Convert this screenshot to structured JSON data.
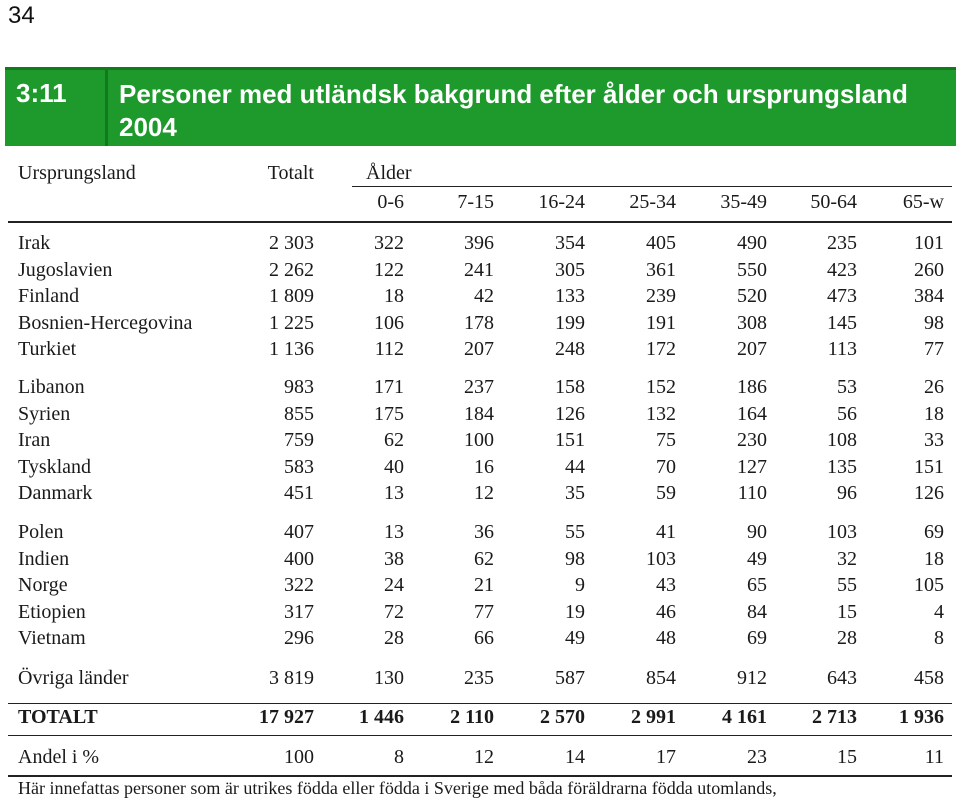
{
  "page_number": "34",
  "title": {
    "number": "3:11",
    "text": "Personer med utländsk bakgrund efter ålder och ursprungsland 2004"
  },
  "header": {
    "origin": "Ursprungsland",
    "total": "Totalt",
    "age": "Ålder",
    "age_groups": [
      "0-6",
      "7-15",
      "16-24",
      "25-34",
      "35-49",
      "50-64",
      "65-w"
    ]
  },
  "groups": [
    [
      {
        "name": "Irak",
        "values": [
          "2 303",
          "322",
          "396",
          "354",
          "405",
          "490",
          "235",
          "101"
        ]
      },
      {
        "name": "Jugoslavien",
        "values": [
          "2 262",
          "122",
          "241",
          "305",
          "361",
          "550",
          "423",
          "260"
        ]
      },
      {
        "name": "Finland",
        "values": [
          "1 809",
          "18",
          "42",
          "133",
          "239",
          "520",
          "473",
          "384"
        ]
      },
      {
        "name": "Bosnien-Hercegovina",
        "values": [
          "1 225",
          "106",
          "178",
          "199",
          "191",
          "308",
          "145",
          "98"
        ]
      },
      {
        "name": "Turkiet",
        "values": [
          "1 136",
          "112",
          "207",
          "248",
          "172",
          "207",
          "113",
          "77"
        ]
      }
    ],
    [
      {
        "name": "Libanon",
        "values": [
          "983",
          "171",
          "237",
          "158",
          "152",
          "186",
          "53",
          "26"
        ]
      },
      {
        "name": "Syrien",
        "values": [
          "855",
          "175",
          "184",
          "126",
          "132",
          "164",
          "56",
          "18"
        ]
      },
      {
        "name": "Iran",
        "values": [
          "759",
          "62",
          "100",
          "151",
          "75",
          "230",
          "108",
          "33"
        ]
      },
      {
        "name": "Tyskland",
        "values": [
          "583",
          "40",
          "16",
          "44",
          "70",
          "127",
          "135",
          "151"
        ]
      },
      {
        "name": "Danmark",
        "values": [
          "451",
          "13",
          "12",
          "35",
          "59",
          "110",
          "96",
          "126"
        ]
      }
    ],
    [
      {
        "name": "Polen",
        "values": [
          "407",
          "13",
          "36",
          "55",
          "41",
          "90",
          "103",
          "69"
        ]
      },
      {
        "name": "Indien",
        "values": [
          "400",
          "38",
          "62",
          "98",
          "103",
          "49",
          "32",
          "18"
        ]
      },
      {
        "name": "Norge",
        "values": [
          "322",
          "24",
          "21",
          "9",
          "43",
          "65",
          "55",
          "105"
        ]
      },
      {
        "name": "Etiopien",
        "values": [
          "317",
          "72",
          "77",
          "19",
          "46",
          "84",
          "15",
          "4"
        ]
      },
      {
        "name": "Vietnam",
        "values": [
          "296",
          "28",
          "66",
          "49",
          "48",
          "69",
          "28",
          "8"
        ]
      }
    ],
    [
      {
        "name": "Övriga länder",
        "values": [
          "3 819",
          "130",
          "235",
          "587",
          "854",
          "912",
          "643",
          "458"
        ]
      }
    ]
  ],
  "total_row": {
    "name": "TOTALT",
    "values": [
      "17 927",
      "1 446",
      "2 110",
      "2 570",
      "2 991",
      "4 161",
      "2 713",
      "1 936"
    ]
  },
  "share_row": {
    "name": "Andel i %",
    "values": [
      "100",
      "8",
      "12",
      "14",
      "17",
      "23",
      "15",
      "11"
    ]
  },
  "footnote": "Här innefattas personer som är utrikes födda eller födda i Sverige med båda föräldrarna födda utomlands,"
}
